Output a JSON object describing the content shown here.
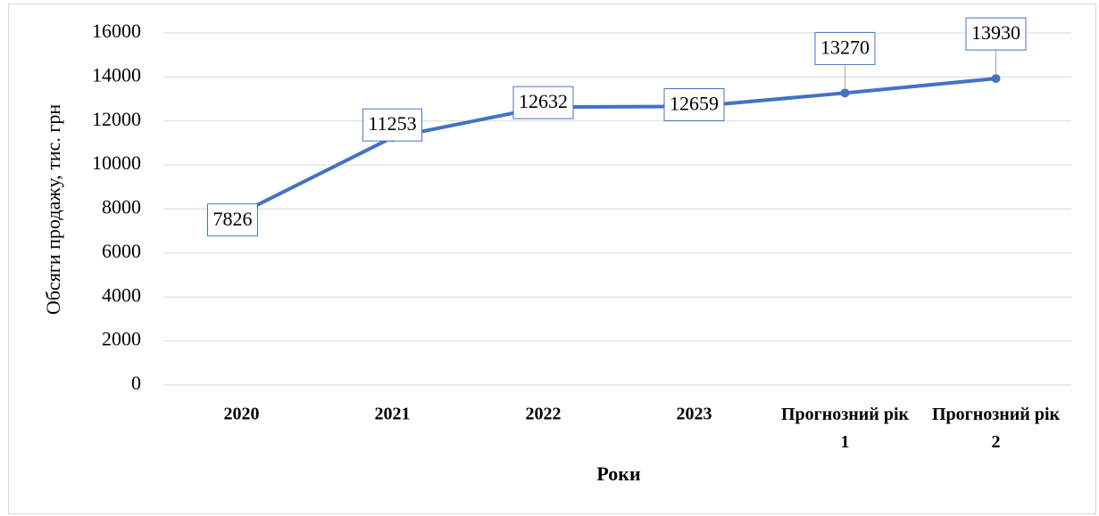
{
  "chart_data": {
    "type": "line",
    "categories": [
      "2020",
      "2021",
      "2022",
      "2023",
      "Прогнозний рік 1",
      "Прогнозний рік 2"
    ],
    "series": [
      {
        "name": "Обсяги продажу",
        "color": "#4472c4",
        "values": [
          7826,
          11253,
          12632,
          12659,
          13270,
          13930
        ]
      }
    ],
    "ylim": [
      0,
      16000
    ],
    "yticks": [
      0,
      2000,
      4000,
      6000,
      8000,
      10000,
      12000,
      14000,
      16000
    ],
    "grid": true,
    "ylabel": "Обсяги продажу, тис. грн",
    "xlabel": "Роки"
  }
}
